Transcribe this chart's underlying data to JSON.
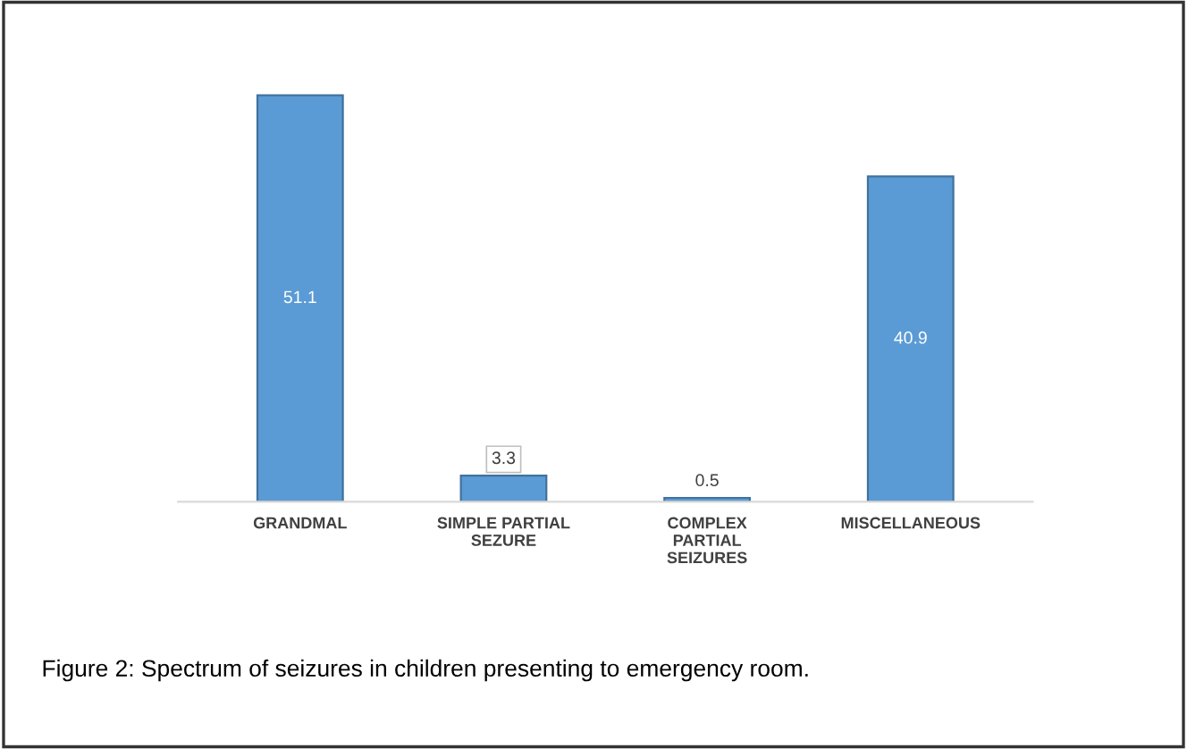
{
  "chart_data": {
    "type": "bar",
    "categories": [
      "GRANDMAL",
      "SIMPLE PARTIAL\nSEZURE",
      "COMPLEX\nPARTIAL\nSEIZURES",
      "MISCELLANEOUS"
    ],
    "values": [
      51.1,
      3.3,
      0.5,
      40.9
    ],
    "color": "#5b9bd5",
    "data_labels": true,
    "annotations": [
      "Figure 2: Spectrum of seizures in children presenting to emergency room."
    ]
  }
}
